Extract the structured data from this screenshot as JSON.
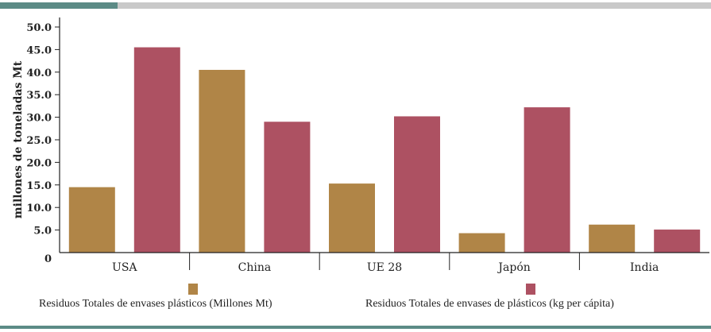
{
  "chart_data": {
    "type": "bar",
    "categories": [
      "USA",
      "China",
      "UE 28",
      "Japón",
      "India"
    ],
    "series": [
      {
        "name": "Residuos Totales de envases plásticos (Millones Mt)",
        "values": [
          14.5,
          40.5,
          15.3,
          4.3,
          6.2
        ],
        "color": "#b08547"
      },
      {
        "name": "Residuos Totales de envases de plásticos (kg per cápita)",
        "values": [
          45.5,
          29.0,
          30.2,
          32.2,
          5.1
        ],
        "color": "#ad5162"
      }
    ],
    "yticks": [
      "0",
      "5.0",
      "10.0",
      "15.0",
      "20.0",
      "25.0",
      "30.0",
      "35.0",
      "40.0",
      "45.0",
      "50.0"
    ],
    "ylabel": "millones de toneladas Mt",
    "xlabel": "",
    "title": "",
    "ylim": [
      0,
      50
    ],
    "grid": false,
    "legend": "bottom"
  },
  "colors": {
    "top_band": "#5c8b86",
    "top_rule": "#c9c9c9",
    "bottom_rule": "#5c8b86",
    "axis": "#222222"
  }
}
